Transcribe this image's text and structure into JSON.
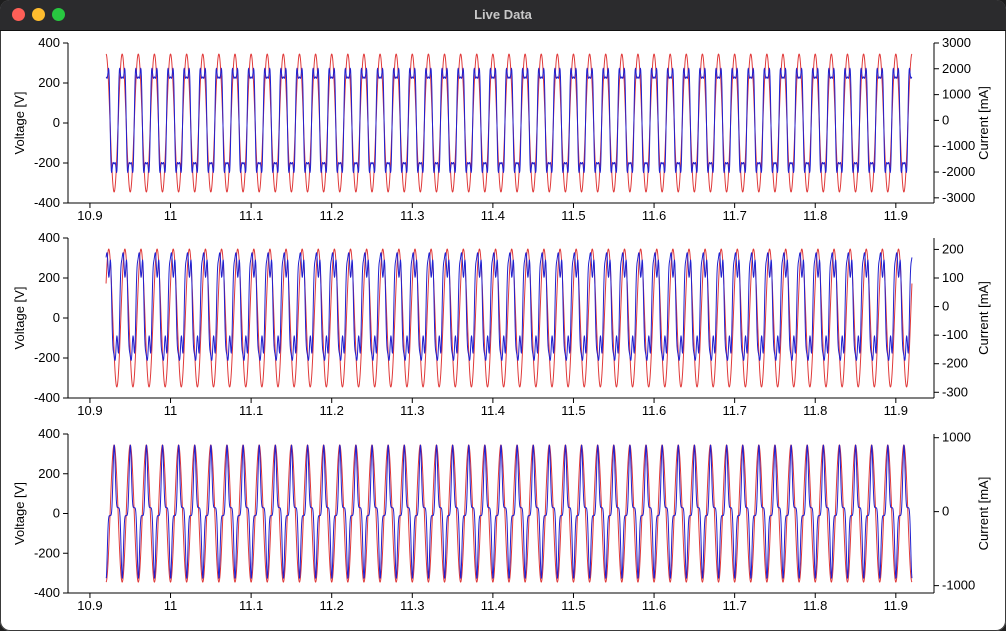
{
  "window": {
    "title": "Live Data"
  },
  "chart_data": [
    {
      "type": "line",
      "x_range": [
        10.92,
        11.92
      ],
      "xlim": [
        10.91,
        11.93
      ],
      "x_ticks": [
        "10.9",
        "11",
        "11.1",
        "11.2",
        "11.3",
        "11.4",
        "11.5",
        "11.6",
        "11.7",
        "11.8",
        "11.9"
      ],
      "x_tick_values": [
        10.9,
        11.0,
        11.1,
        11.2,
        11.3,
        11.4,
        11.5,
        11.6,
        11.7,
        11.8,
        11.9
      ],
      "ylabel_left": "Voltage [V]",
      "ylim_left": [
        -400,
        400
      ],
      "y_ticks_left": [
        "400",
        "200",
        "0",
        "-200",
        "-400"
      ],
      "ylabel_right": "Current [mA]",
      "ylim_right": [
        -3200,
        3000
      ],
      "y_ticks_right": [
        3000,
        2000,
        1000,
        0,
        -1000,
        -2000,
        -3000
      ],
      "frequency_hz": 50,
      "series": [
        {
          "axis": "left",
          "color": "#e03a3a",
          "shape": "sine",
          "amplitude": 345,
          "phase_deg": 90
        },
        {
          "axis": "right",
          "color": "#2020d0",
          "shape": "flat-top",
          "amplitude": 2300,
          "phase_deg": 90
        }
      ]
    },
    {
      "type": "line",
      "x_range": [
        10.92,
        11.92
      ],
      "xlim": [
        10.91,
        11.93
      ],
      "x_ticks": [
        "10.9",
        "11",
        "11.1",
        "11.2",
        "11.3",
        "11.4",
        "11.5",
        "11.6",
        "11.7",
        "11.8",
        "11.9"
      ],
      "x_tick_values": [
        10.9,
        11.0,
        11.1,
        11.2,
        11.3,
        11.4,
        11.5,
        11.6,
        11.7,
        11.8,
        11.9
      ],
      "ylabel_left": "Voltage [V]",
      "ylim_left": [
        -400,
        400
      ],
      "y_ticks_left": [
        "400",
        "200",
        "0",
        "-200",
        "-400"
      ],
      "ylabel_right": "Current [mA]",
      "ylim_right": [
        -320,
        240
      ],
      "y_ticks_right": [
        200,
        100,
        0,
        -100,
        -200,
        -300
      ],
      "frequency_hz": 50,
      "series": [
        {
          "axis": "left",
          "color": "#e03a3a",
          "shape": "sine",
          "amplitude": 345,
          "phase_deg": 30
        },
        {
          "axis": "right",
          "color": "#2020d0",
          "shape": "distorted",
          "amplitude": 235,
          "phase_deg": 55
        }
      ]
    },
    {
      "type": "line",
      "x_range": [
        10.92,
        11.92
      ],
      "xlim": [
        10.91,
        11.93
      ],
      "x_ticks": [
        "10.9",
        "11",
        "11.1",
        "11.2",
        "11.3",
        "11.4",
        "11.5",
        "11.6",
        "11.7",
        "11.8",
        "11.9"
      ],
      "x_tick_values": [
        10.9,
        11.0,
        11.1,
        11.2,
        11.3,
        11.4,
        11.5,
        11.6,
        11.7,
        11.8,
        11.9
      ],
      "ylabel_left": "Voltage [V]",
      "ylim_left": [
        -400,
        400
      ],
      "y_ticks_left": [
        "400",
        "200",
        "0",
        "-200",
        "-400"
      ],
      "ylabel_right": "Current [mA]",
      "ylim_right": [
        -1100,
        1050
      ],
      "y_ticks_right": [
        1000,
        0,
        -1000
      ],
      "frequency_hz": 50,
      "series": [
        {
          "axis": "left",
          "color": "#e03a3a",
          "shape": "sine",
          "amplitude": 345,
          "phase_deg": -90
        },
        {
          "axis": "right",
          "color": "#2020d0",
          "shape": "pulse",
          "amplitude": 900,
          "phase_deg": -90
        }
      ]
    }
  ]
}
